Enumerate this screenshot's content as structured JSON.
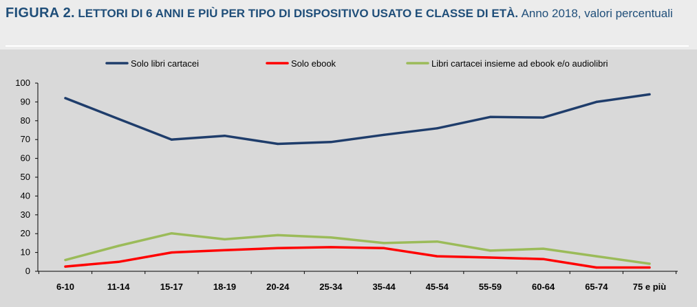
{
  "header": {
    "figure_num": "FIGURA 2.",
    "title": "LETTORI DI 6 ANNI E PIÙ PER TIPO DI DISPOSITIVO USATO E CLASSE DI ETÀ.",
    "subtitle": "Anno 2018, valori percentuali"
  },
  "chart_data": {
    "type": "line",
    "categories": [
      "6-10",
      "11-14",
      "15-17",
      "18-19",
      "20-24",
      "25-34",
      "35-44",
      "45-54",
      "55-59",
      "60-64",
      "65-74",
      "75 e più"
    ],
    "ylim": [
      0,
      100
    ],
    "yticks": [
      0,
      10,
      20,
      30,
      40,
      50,
      60,
      70,
      80,
      90,
      100
    ],
    "grid": false,
    "legend_position": "top",
    "series": [
      {
        "name": "Solo libri cartacei",
        "color": "#1f3d6b",
        "values": [
          92,
          81,
          70,
          72,
          67.7,
          68.7,
          72.5,
          76,
          82,
          81.7,
          90,
          94
        ]
      },
      {
        "name": "Solo ebook",
        "color": "#ff0000",
        "values": [
          2.5,
          5,
          10,
          11.2,
          12.3,
          12.8,
          12.3,
          8,
          7.3,
          6.5,
          2,
          2
        ]
      },
      {
        "name": "Libri cartacei insieme ad ebook e/o audiolibri",
        "color": "#9bbb59",
        "values": [
          6,
          13.5,
          20.2,
          17,
          19.2,
          18,
          15,
          15.8,
          11,
          12,
          8,
          4
        ]
      }
    ]
  }
}
